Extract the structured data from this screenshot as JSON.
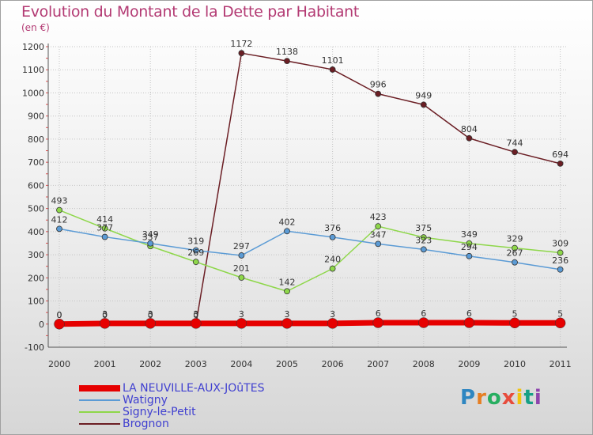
{
  "title": "Evolution du Montant de la Dette par Habitant",
  "subtitle": "(en €)",
  "logo_text": "Proxiti",
  "chart_data": {
    "type": "line",
    "x": [
      "2000",
      "2001",
      "2002",
      "2003",
      "2004",
      "2005",
      "2006",
      "2007",
      "2008",
      "2009",
      "2010",
      "2011"
    ],
    "ylim": [
      -100,
      1200
    ],
    "yticks": [
      -100,
      0,
      100,
      200,
      300,
      400,
      500,
      600,
      700,
      800,
      900,
      1000,
      1100,
      1200
    ],
    "grid": true,
    "legend_position": "bottom-left",
    "series": [
      {
        "name": "LA NEUVILLE-AUX-JOûTES",
        "color": "#e60000",
        "values": [
          0,
          3,
          3,
          3,
          3,
          3,
          3,
          6,
          6,
          6,
          5,
          5
        ]
      },
      {
        "name": "Watigny",
        "color": "#5b9bd5",
        "values": [
          412,
          377,
          349,
          319,
          297,
          402,
          376,
          347,
          323,
          294,
          267,
          236
        ]
      },
      {
        "name": "Signy-le-Petit",
        "color": "#8ed74a",
        "values": [
          493,
          414,
          337,
          269,
          201,
          142,
          240,
          423,
          375,
          349,
          329,
          309
        ]
      },
      {
        "name": "Brognon",
        "color": "#6b1e24",
        "values": [
          0,
          0,
          0,
          0,
          1172,
          1138,
          1101,
          996,
          949,
          804,
          744,
          694
        ]
      }
    ]
  }
}
